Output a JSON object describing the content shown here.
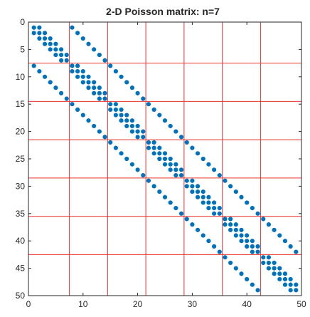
{
  "chart_data": {
    "type": "scatter",
    "title": "2-D Poisson matrix: n=7",
    "n": 7,
    "matrix_size": 49,
    "xlim": [
      0,
      50
    ],
    "ylim": [
      0,
      50
    ],
    "y_reversed": true,
    "x_ticks": [
      0,
      10,
      20,
      30,
      40,
      50
    ],
    "y_ticks": [
      0,
      5,
      10,
      15,
      20,
      25,
      30,
      35,
      40,
      45,
      50
    ],
    "grid_lines": [
      7.5,
      14.5,
      21.5,
      28.5,
      35.5,
      42.5
    ],
    "colors": {
      "marker": "#0072BD",
      "grid": "#E8322D",
      "axes": "#262626"
    }
  }
}
